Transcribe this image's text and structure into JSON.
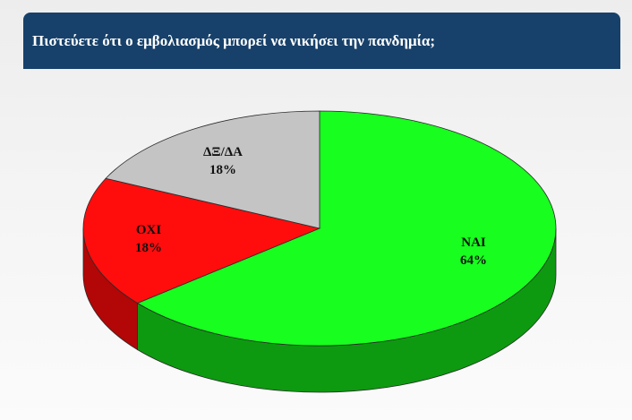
{
  "header": {
    "title": "Πιστεύετε ότι ο εμβολιασμός μπορεί να νικήσει την πανδημία;"
  },
  "chart_data": {
    "type": "pie",
    "title": "Πιστεύετε ότι ο εμβολιασμός μπορεί να νικήσει την πανδημία;",
    "style": "3d",
    "slices": [
      {
        "label": "ΝΑΙ",
        "value": 64,
        "value_label": "64%",
        "color": "#18ff1f",
        "side_color": "#0d9a10"
      },
      {
        "label": "ΟΧΙ",
        "value": 18,
        "value_label": "18%",
        "color": "#ff0d0d",
        "side_color": "#b30606"
      },
      {
        "label": "ΔΞ/ΔΑ",
        "value": 18,
        "value_label": "18%",
        "color": "#c4c4c4",
        "side_color": "#8a8a8a"
      }
    ]
  }
}
